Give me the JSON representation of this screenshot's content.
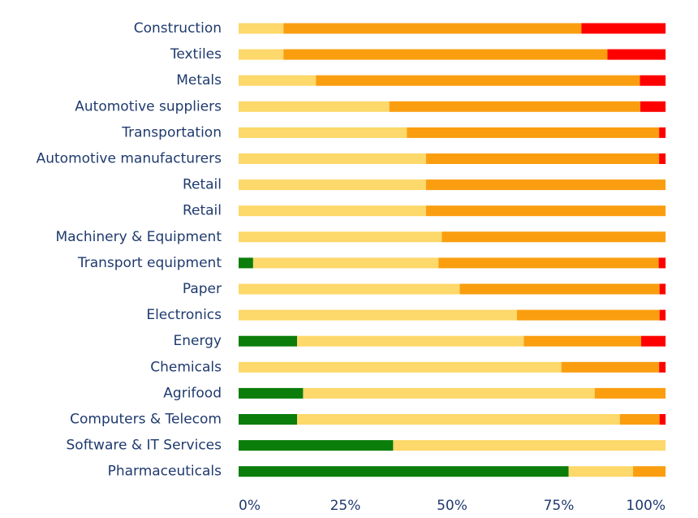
{
  "chart_data": {
    "type": "bar",
    "orientation": "horizontal",
    "stacked": true,
    "title": "",
    "xlabel": "",
    "ylabel": "",
    "xlim": [
      0,
      100
    ],
    "x_ticks": [
      "0%",
      "25%",
      "50%",
      "75%",
      "100%"
    ],
    "grid": false,
    "legend": "none",
    "categories": [
      "Construction",
      "Textiles",
      "Metals",
      "Automotive suppliers",
      "Transportation",
      "Automotive manufacturers",
      "Retail",
      "Retail",
      "Machinery & Equipment",
      "Transport equipment",
      "Paper",
      "Electronics",
      "Energy",
      "Chemicals",
      "Agrifood",
      "Computers & Telecom",
      "Software & IT Services",
      "Pharmaceuticals"
    ],
    "series": [
      {
        "color": "#0a7d0a",
        "values": [
          0,
          0,
          0,
          0,
          0,
          0,
          0,
          0,
          0,
          3.4,
          0,
          0,
          13.7,
          0,
          15.1,
          13.7,
          36.2,
          77.3
        ]
      },
      {
        "color": "#fdd86a",
        "values": [
          10.5,
          10.5,
          18.1,
          35.3,
          39.4,
          43.9,
          43.9,
          43.9,
          47.6,
          43.4,
          51.8,
          65.2,
          53.1,
          75.6,
          68.3,
          75.6,
          63.8,
          15.1
        ]
      },
      {
        "color": "#fa9e10",
        "values": [
          69.8,
          75.9,
          75.9,
          58.8,
          59.1,
          54.6,
          56.1,
          56.1,
          52.4,
          51.6,
          46.8,
          33.4,
          27.5,
          22.9,
          16.6,
          9.3,
          0,
          7.6
        ]
      },
      {
        "color": "#ff0000",
        "values": [
          19.7,
          13.6,
          6.0,
          5.9,
          1.5,
          1.5,
          0,
          0,
          0,
          1.6,
          1.4,
          1.4,
          5.7,
          1.5,
          0,
          1.4,
          0,
          0
        ]
      }
    ]
  }
}
